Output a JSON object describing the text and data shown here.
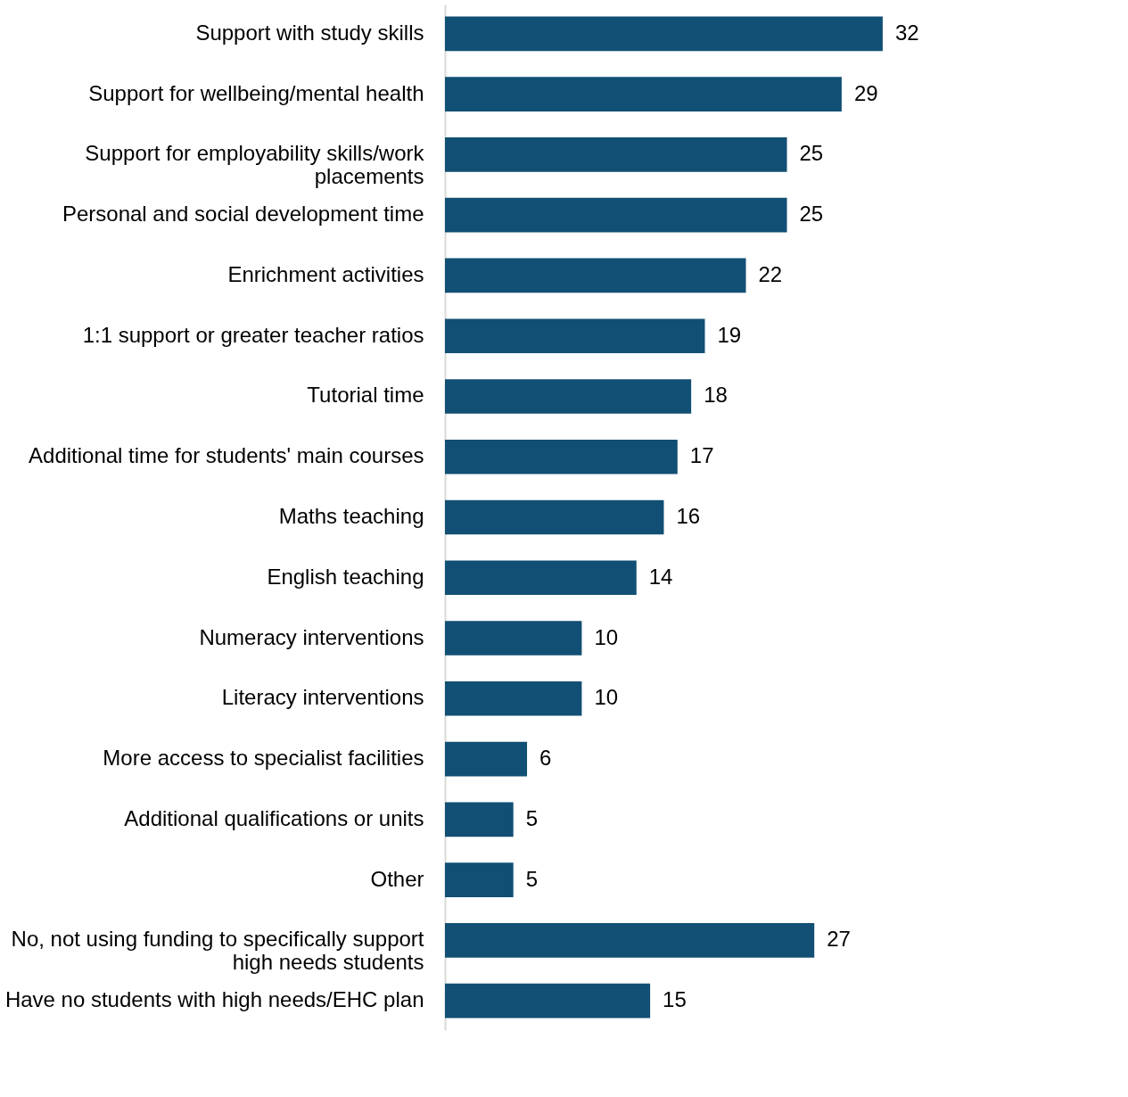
{
  "chart_data": {
    "type": "bar",
    "orientation": "horizontal",
    "data_labels": true,
    "categories": [
      "Support with study skills",
      "Support for wellbeing/mental health",
      "Support for employability skills/work placements",
      "Personal and social development time",
      "Enrichment activities",
      "1:1 support or greater teacher ratios",
      "Tutorial time",
      "Additional time for students' main courses",
      "Maths teaching",
      "English teaching",
      "Numeracy interventions",
      "Literacy interventions",
      "More access to specialist facilities",
      "Additional qualifications or units",
      "Other",
      "No, not using funding to specifically support high needs students",
      "Have no students with high needs/EHC plan"
    ],
    "values": [
      32,
      29,
      25,
      25,
      22,
      19,
      18,
      17,
      16,
      14,
      10,
      10,
      6,
      5,
      5,
      27,
      15
    ],
    "color": "#124f74"
  }
}
